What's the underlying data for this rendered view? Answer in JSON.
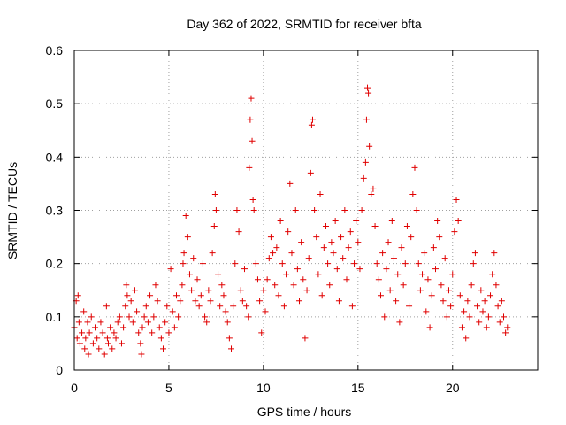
{
  "chart_data": {
    "type": "scatter",
    "title": "Day 362 of 2022, SRMTID for receiver bfta",
    "xlabel": "GPS time / hours",
    "ylabel": "SRMTID / TECUs",
    "xlim": [
      0,
      24.5
    ],
    "ylim": [
      0,
      0.6
    ],
    "x_ticks": [
      0,
      5,
      10,
      15,
      20
    ],
    "x_tick_labels": [
      "0",
      "5",
      "10",
      "15",
      "20"
    ],
    "y_ticks": [
      0,
      0.1,
      0.2,
      0.3,
      0.4,
      0.5,
      0.6
    ],
    "y_tick_labels": [
      "0",
      "0.1",
      "0.2",
      "0.3",
      "0.4",
      "0.5",
      "0.6"
    ],
    "grid": true,
    "marker": "plus",
    "color": "#e00000",
    "series": [
      {
        "name": "SRMTID",
        "points": [
          [
            0.0,
            0.08
          ],
          [
            0.1,
            0.13
          ],
          [
            0.15,
            0.06
          ],
          [
            0.2,
            0.14
          ],
          [
            0.25,
            0.09
          ],
          [
            0.3,
            0.05
          ],
          [
            0.4,
            0.07
          ],
          [
            0.5,
            0.11
          ],
          [
            0.55,
            0.04
          ],
          [
            0.6,
            0.06
          ],
          [
            0.7,
            0.09
          ],
          [
            0.75,
            0.03
          ],
          [
            0.8,
            0.07
          ],
          [
            0.9,
            0.1
          ],
          [
            1.0,
            0.05
          ],
          [
            1.1,
            0.08
          ],
          [
            1.2,
            0.06
          ],
          [
            1.3,
            0.04
          ],
          [
            1.4,
            0.09
          ],
          [
            1.5,
            0.07
          ],
          [
            1.6,
            0.03
          ],
          [
            1.7,
            0.12
          ],
          [
            1.75,
            0.06
          ],
          [
            1.8,
            0.05
          ],
          [
            1.9,
            0.08
          ],
          [
            2.0,
            0.04
          ],
          [
            2.1,
            0.07
          ],
          [
            2.2,
            0.06
          ],
          [
            2.3,
            0.09
          ],
          [
            2.4,
            0.1
          ],
          [
            2.5,
            0.05
          ],
          [
            2.6,
            0.08
          ],
          [
            2.7,
            0.12
          ],
          [
            2.75,
            0.16
          ],
          [
            2.8,
            0.14
          ],
          [
            2.9,
            0.1
          ],
          [
            3.0,
            0.13
          ],
          [
            3.1,
            0.09
          ],
          [
            3.2,
            0.15
          ],
          [
            3.3,
            0.11
          ],
          [
            3.4,
            0.07
          ],
          [
            3.5,
            0.05
          ],
          [
            3.55,
            0.03
          ],
          [
            3.6,
            0.08
          ],
          [
            3.7,
            0.1
          ],
          [
            3.8,
            0.12
          ],
          [
            3.9,
            0.09
          ],
          [
            4.0,
            0.14
          ],
          [
            4.1,
            0.07
          ],
          [
            4.2,
            0.1
          ],
          [
            4.3,
            0.16
          ],
          [
            4.4,
            0.13
          ],
          [
            4.5,
            0.08
          ],
          [
            4.6,
            0.06
          ],
          [
            4.7,
            0.04
          ],
          [
            4.8,
            0.09
          ],
          [
            4.9,
            0.12
          ],
          [
            5.0,
            0.07
          ],
          [
            5.1,
            0.19
          ],
          [
            5.2,
            0.11
          ],
          [
            5.3,
            0.08
          ],
          [
            5.4,
            0.14
          ],
          [
            5.5,
            0.1
          ],
          [
            5.6,
            0.13
          ],
          [
            5.7,
            0.16
          ],
          [
            5.75,
            0.2
          ],
          [
            5.8,
            0.22
          ],
          [
            5.9,
            0.29
          ],
          [
            6.0,
            0.25
          ],
          [
            6.1,
            0.18
          ],
          [
            6.2,
            0.15
          ],
          [
            6.3,
            0.21
          ],
          [
            6.4,
            0.13
          ],
          [
            6.5,
            0.17
          ],
          [
            6.6,
            0.12
          ],
          [
            6.7,
            0.14
          ],
          [
            6.8,
            0.2
          ],
          [
            6.9,
            0.1
          ],
          [
            7.0,
            0.09
          ],
          [
            7.1,
            0.15
          ],
          [
            7.2,
            0.13
          ],
          [
            7.3,
            0.22
          ],
          [
            7.4,
            0.27
          ],
          [
            7.45,
            0.33
          ],
          [
            7.5,
            0.3
          ],
          [
            7.6,
            0.18
          ],
          [
            7.7,
            0.12
          ],
          [
            7.8,
            0.16
          ],
          [
            7.9,
            0.14
          ],
          [
            8.0,
            0.11
          ],
          [
            8.1,
            0.09
          ],
          [
            8.2,
            0.06
          ],
          [
            8.3,
            0.04
          ],
          [
            8.4,
            0.12
          ],
          [
            8.5,
            0.2
          ],
          [
            8.6,
            0.3
          ],
          [
            8.7,
            0.26
          ],
          [
            8.8,
            0.15
          ],
          [
            8.9,
            0.13
          ],
          [
            9.0,
            0.19
          ],
          [
            9.1,
            0.12
          ],
          [
            9.2,
            0.1
          ],
          [
            9.25,
            0.38
          ],
          [
            9.3,
            0.47
          ],
          [
            9.35,
            0.51
          ],
          [
            9.4,
            0.43
          ],
          [
            9.45,
            0.32
          ],
          [
            9.5,
            0.3
          ],
          [
            9.6,
            0.2
          ],
          [
            9.7,
            0.17
          ],
          [
            9.8,
            0.13
          ],
          [
            9.9,
            0.07
          ],
          [
            10.0,
            0.15
          ],
          [
            10.1,
            0.11
          ],
          [
            10.2,
            0.17
          ],
          [
            10.3,
            0.21
          ],
          [
            10.4,
            0.25
          ],
          [
            10.5,
            0.22
          ],
          [
            10.6,
            0.16
          ],
          [
            10.7,
            0.23
          ],
          [
            10.8,
            0.14
          ],
          [
            10.9,
            0.28
          ],
          [
            11.0,
            0.2
          ],
          [
            11.1,
            0.12
          ],
          [
            11.2,
            0.18
          ],
          [
            11.3,
            0.26
          ],
          [
            11.4,
            0.35
          ],
          [
            11.5,
            0.22
          ],
          [
            11.6,
            0.16
          ],
          [
            11.7,
            0.3
          ],
          [
            11.8,
            0.19
          ],
          [
            11.9,
            0.13
          ],
          [
            12.0,
            0.24
          ],
          [
            12.1,
            0.17
          ],
          [
            12.2,
            0.06
          ],
          [
            12.3,
            0.15
          ],
          [
            12.4,
            0.21
          ],
          [
            12.5,
            0.37
          ],
          [
            12.55,
            0.46
          ],
          [
            12.6,
            0.47
          ],
          [
            12.7,
            0.3
          ],
          [
            12.8,
            0.25
          ],
          [
            12.9,
            0.18
          ],
          [
            13.0,
            0.33
          ],
          [
            13.1,
            0.14
          ],
          [
            13.2,
            0.23
          ],
          [
            13.3,
            0.27
          ],
          [
            13.4,
            0.2
          ],
          [
            13.5,
            0.16
          ],
          [
            13.6,
            0.24
          ],
          [
            13.7,
            0.22
          ],
          [
            13.8,
            0.28
          ],
          [
            13.9,
            0.19
          ],
          [
            14.0,
            0.13
          ],
          [
            14.1,
            0.25
          ],
          [
            14.2,
            0.21
          ],
          [
            14.3,
            0.3
          ],
          [
            14.4,
            0.17
          ],
          [
            14.5,
            0.23
          ],
          [
            14.6,
            0.26
          ],
          [
            14.7,
            0.12
          ],
          [
            14.8,
            0.2
          ],
          [
            14.9,
            0.28
          ],
          [
            15.0,
            0.24
          ],
          [
            15.1,
            0.19
          ],
          [
            15.2,
            0.3
          ],
          [
            15.3,
            0.36
          ],
          [
            15.4,
            0.39
          ],
          [
            15.45,
            0.47
          ],
          [
            15.5,
            0.53
          ],
          [
            15.55,
            0.52
          ],
          [
            15.6,
            0.42
          ],
          [
            15.7,
            0.33
          ],
          [
            15.8,
            0.34
          ],
          [
            15.9,
            0.27
          ],
          [
            16.0,
            0.2
          ],
          [
            16.1,
            0.17
          ],
          [
            16.2,
            0.14
          ],
          [
            16.3,
            0.22
          ],
          [
            16.4,
            0.1
          ],
          [
            16.5,
            0.19
          ],
          [
            16.6,
            0.24
          ],
          [
            16.7,
            0.15
          ],
          [
            16.8,
            0.28
          ],
          [
            16.9,
            0.21
          ],
          [
            17.0,
            0.13
          ],
          [
            17.1,
            0.18
          ],
          [
            17.2,
            0.09
          ],
          [
            17.3,
            0.23
          ],
          [
            17.4,
            0.16
          ],
          [
            17.5,
            0.2
          ],
          [
            17.6,
            0.27
          ],
          [
            17.7,
            0.12
          ],
          [
            17.8,
            0.25
          ],
          [
            17.9,
            0.33
          ],
          [
            18.0,
            0.38
          ],
          [
            18.1,
            0.3
          ],
          [
            18.2,
            0.2
          ],
          [
            18.3,
            0.15
          ],
          [
            18.4,
            0.18
          ],
          [
            18.5,
            0.22
          ],
          [
            18.6,
            0.11
          ],
          [
            18.7,
            0.17
          ],
          [
            18.8,
            0.08
          ],
          [
            18.9,
            0.14
          ],
          [
            19.0,
            0.23
          ],
          [
            19.1,
            0.19
          ],
          [
            19.2,
            0.28
          ],
          [
            19.3,
            0.25
          ],
          [
            19.4,
            0.16
          ],
          [
            19.5,
            0.13
          ],
          [
            19.6,
            0.21
          ],
          [
            19.7,
            0.1
          ],
          [
            19.8,
            0.15
          ],
          [
            19.9,
            0.12
          ],
          [
            20.0,
            0.18
          ],
          [
            20.1,
            0.26
          ],
          [
            20.2,
            0.32
          ],
          [
            20.3,
            0.28
          ],
          [
            20.4,
            0.14
          ],
          [
            20.5,
            0.08
          ],
          [
            20.6,
            0.11
          ],
          [
            20.7,
            0.06
          ],
          [
            20.8,
            0.13
          ],
          [
            20.9,
            0.1
          ],
          [
            21.0,
            0.16
          ],
          [
            21.1,
            0.2
          ],
          [
            21.2,
            0.22
          ],
          [
            21.3,
            0.12
          ],
          [
            21.4,
            0.09
          ],
          [
            21.5,
            0.15
          ],
          [
            21.6,
            0.11
          ],
          [
            21.7,
            0.13
          ],
          [
            21.8,
            0.08
          ],
          [
            21.9,
            0.1
          ],
          [
            22.0,
            0.14
          ],
          [
            22.1,
            0.18
          ],
          [
            22.2,
            0.22
          ],
          [
            22.3,
            0.16
          ],
          [
            22.4,
            0.12
          ],
          [
            22.5,
            0.09
          ],
          [
            22.6,
            0.13
          ],
          [
            22.7,
            0.1
          ],
          [
            22.8,
            0.07
          ],
          [
            22.9,
            0.08
          ]
        ]
      }
    ]
  }
}
